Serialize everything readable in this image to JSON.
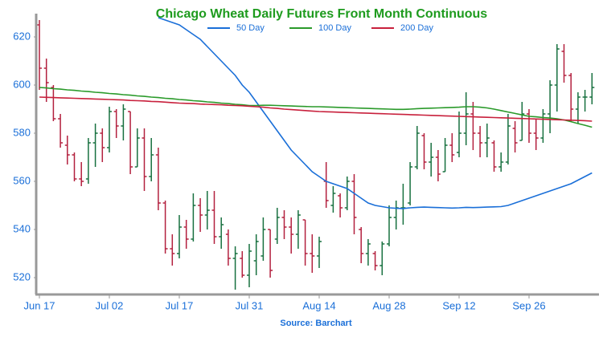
{
  "chart_data": {
    "type": "ohlc",
    "title": "Chicago Wheat Daily Futures Front Month Continuous",
    "source": "Source: Barchart",
    "categories": [
      "Jun 17",
      null,
      null,
      null,
      null,
      null,
      null,
      null,
      null,
      null,
      "Jul 02",
      null,
      null,
      null,
      null,
      null,
      null,
      null,
      null,
      null,
      "Jul 17",
      null,
      null,
      null,
      null,
      null,
      null,
      null,
      null,
      null,
      "Jul 31",
      null,
      null,
      null,
      null,
      null,
      null,
      null,
      null,
      null,
      "Aug 14",
      null,
      null,
      null,
      null,
      null,
      null,
      null,
      null,
      null,
      "Aug 28",
      null,
      null,
      null,
      null,
      null,
      null,
      null,
      null,
      null,
      "Sep 12",
      null,
      null,
      null,
      null,
      null,
      null,
      null,
      null,
      null,
      "Sep 26",
      null,
      null,
      null,
      null,
      null,
      null,
      null,
      null,
      null
    ],
    "open": [
      625,
      607,
      599,
      586,
      575,
      571,
      561,
      561,
      576,
      580,
      574,
      589,
      583,
      589,
      566,
      578,
      562,
      571,
      551,
      532,
      530,
      541,
      536,
      550,
      546,
      548,
      537,
      538,
      528,
      528,
      521,
      527,
      529,
      540,
      536,
      545,
      541,
      538,
      544,
      530,
      529,
      560,
      550,
      554,
      549,
      560,
      540,
      530,
      530,
      525,
      534,
      545,
      549,
      551,
      566,
      579,
      568,
      570,
      564,
      575,
      572,
      580,
      588,
      580,
      576,
      576,
      566,
      568,
      582,
      577,
      588,
      580,
      578,
      588,
      600,
      614,
      604,
      590,
      595,
      595
    ],
    "high": [
      627,
      611,
      600,
      588,
      579,
      572,
      568,
      578,
      584,
      582,
      591,
      590,
      592,
      589,
      582,
      582,
      578,
      574,
      552,
      538,
      546,
      544,
      555,
      553,
      556,
      556,
      545,
      540,
      533,
      531,
      534,
      538,
      545,
      540,
      549,
      548,
      545,
      548,
      544,
      538,
      537,
      568,
      558,
      555,
      562,
      563,
      541,
      536,
      531,
      535,
      550,
      552,
      559,
      568,
      583,
      580,
      576,
      573,
      578,
      580,
      589,
      597,
      593,
      583,
      584,
      577,
      572,
      588,
      585,
      593,
      590,
      586,
      590,
      602,
      617,
      617,
      605,
      597,
      598,
      605
    ],
    "low": [
      598,
      593,
      585,
      574,
      567,
      560,
      558,
      559,
      566,
      568,
      572,
      578,
      577,
      563,
      566,
      556,
      560,
      548,
      530,
      525,
      528,
      532,
      535,
      539,
      540,
      534,
      532,
      525,
      515,
      520,
      516,
      521,
      527,
      520,
      534,
      536,
      530,
      532,
      525,
      522,
      524,
      549,
      547,
      545,
      548,
      538,
      526,
      525,
      523,
      521,
      533,
      540,
      542,
      550,
      565,
      565,
      562,
      560,
      564,
      568,
      570,
      575,
      573,
      570,
      570,
      564,
      564,
      567,
      572,
      577,
      576,
      573,
      576,
      580,
      589,
      601,
      585,
      584,
      589,
      592
    ],
    "close": [
      607,
      601,
      586,
      576,
      571,
      561,
      560,
      576,
      580,
      574,
      589,
      583,
      590,
      566,
      578,
      562,
      571,
      551,
      532,
      530,
      541,
      536,
      550,
      546,
      548,
      537,
      542,
      528,
      530,
      521,
      531,
      535,
      540,
      523,
      545,
      541,
      538,
      546,
      530,
      529,
      535,
      552,
      555,
      549,
      560,
      545,
      530,
      534,
      525,
      534,
      545,
      549,
      549,
      566,
      580,
      568,
      570,
      563,
      575,
      571,
      580,
      588,
      580,
      576,
      578,
      566,
      568,
      583,
      576,
      588,
      580,
      578,
      588,
      600,
      615,
      604,
      590,
      595,
      595,
      599
    ],
    "up_color": "#17703f",
    "down_color": "#b3203e",
    "lines": [
      {
        "name": "50 Day",
        "color": "#1a6fd8",
        "values": [
          null,
          null,
          null,
          null,
          null,
          null,
          null,
          null,
          null,
          null,
          null,
          null,
          null,
          null,
          null,
          null,
          null,
          628,
          627,
          626,
          625,
          623,
          621,
          619,
          616,
          613,
          610,
          607,
          604,
          600,
          597,
          593,
          589,
          585,
          581,
          577,
          573,
          570,
          567,
          564,
          562,
          560,
          559,
          558,
          557,
          555,
          553,
          551,
          550,
          549.5,
          549,
          548.8,
          548.7,
          549,
          549.2,
          549.3,
          549.2,
          549.1,
          549,
          548.9,
          549,
          549.2,
          549.1,
          549.2,
          549.3,
          549.4,
          549.5,
          550,
          551,
          552,
          553,
          554,
          555,
          556,
          557,
          558,
          559,
          560.5,
          562,
          563.5
        ]
      },
      {
        "name": "100 Day",
        "color": "#2a9a2a",
        "values": [
          599,
          598.8,
          598.5,
          598.3,
          598,
          597.8,
          597.5,
          597.3,
          597,
          596.8,
          596.5,
          596.3,
          596,
          595.8,
          595.5,
          595.3,
          595,
          594.8,
          594.5,
          594.3,
          594,
          593.8,
          593.5,
          593.3,
          593,
          592.8,
          592.5,
          592.3,
          592,
          591.8,
          591.5,
          591.5,
          591.6,
          591.6,
          591.5,
          591.4,
          591.3,
          591.2,
          591.1,
          591,
          591,
          590.9,
          590.8,
          590.7,
          590.6,
          590.5,
          590.4,
          590.3,
          590.2,
          590.1,
          590,
          589.9,
          589.9,
          590,
          590.2,
          590.3,
          590.4,
          590.5,
          590.6,
          590.7,
          590.8,
          591,
          591,
          590.8,
          590.5,
          590,
          589.4,
          588.8,
          588.2,
          587.6,
          587,
          586.8,
          586.5,
          586.3,
          586,
          585.5,
          584.8,
          584,
          583.3,
          582.5
        ]
      },
      {
        "name": "200 Day",
        "color": "#c8203c",
        "values": [
          595,
          594.9,
          594.8,
          594.7,
          594.6,
          594.5,
          594.4,
          594.3,
          594.2,
          594.1,
          594,
          593.9,
          593.8,
          593.6,
          593.5,
          593.4,
          593.2,
          593.1,
          592.9,
          592.7,
          592.5,
          592.4,
          592.3,
          592.1,
          592,
          591.9,
          591.8,
          591.6,
          591.5,
          591.4,
          591.2,
          591,
          590.8,
          590.5,
          590.3,
          590,
          589.8,
          589.6,
          589.4,
          589.2,
          589,
          588.9,
          588.8,
          588.7,
          588.6,
          588.5,
          588.4,
          588.3,
          588.2,
          588.1,
          588,
          587.9,
          587.8,
          587.7,
          587.6,
          587.5,
          587.4,
          587.3,
          587.2,
          587.1,
          587,
          586.9,
          586.8,
          586.7,
          586.6,
          586.5,
          586.4,
          586.3,
          586.2,
          586.1,
          586,
          585.9,
          585.8,
          585.7,
          585.6,
          585.5,
          585.4,
          585.3,
          585.2,
          585
        ]
      }
    ],
    "ylim": [
      513.5,
      629.5
    ],
    "yticks": [
      520,
      540,
      560,
      580,
      600,
      620
    ],
    "grid": false
  }
}
